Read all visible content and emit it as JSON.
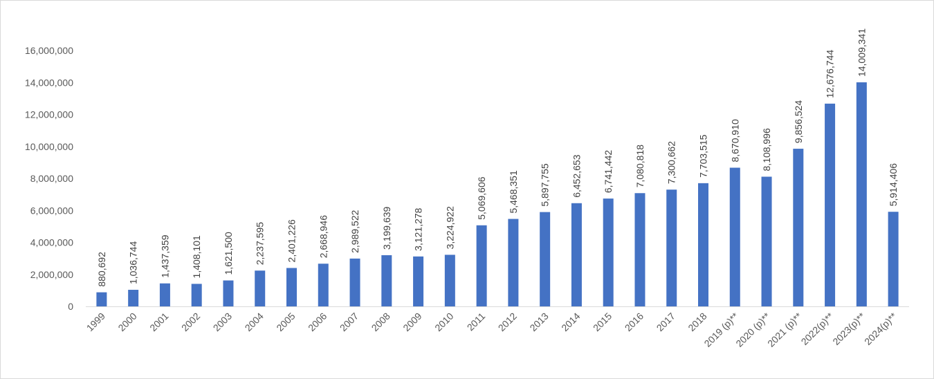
{
  "chart_data": {
    "type": "bar",
    "title": "",
    "xlabel": "",
    "ylabel": "",
    "ylim": [
      0,
      16000000
    ],
    "yticks": [
      0,
      2000000,
      4000000,
      6000000,
      8000000,
      10000000,
      12000000,
      14000000,
      16000000
    ],
    "ytick_labels": [
      "0",
      "2,000,000",
      "4,000,000",
      "6,000,000",
      "8,000,000",
      "10,000,000",
      "12,000,000",
      "14,000,000",
      "16,000,000"
    ],
    "grid": false,
    "legend": "none",
    "bar_color": "#4472C4",
    "categories": [
      "1999",
      "2000",
      "2001",
      "2002",
      "2003",
      "2004",
      "2005",
      "2006",
      "2007",
      "2008",
      "2009",
      "2010",
      "2011",
      "2012",
      "2013",
      "2014",
      "2015",
      "2016",
      "2017",
      "2018",
      "2019 (p)**",
      "2020 (p)**",
      "2021 (p)**",
      "2022(p)**",
      "2023(p)**",
      "2024(p)**"
    ],
    "values": [
      880692,
      1036744,
      1437359,
      1408101,
      1621500,
      2237595,
      2401226,
      2668946,
      2989522,
      3199639,
      3121278,
      3224922,
      5069606,
      5468351,
      5897755,
      6452653,
      6741442,
      7080818,
      7300662,
      7703515,
      8670910,
      8108996,
      9856524,
      12676744,
      14009341,
      5914406
    ],
    "value_labels": [
      "880,692",
      "1,036,744",
      "1,437,359",
      "1,408,101",
      "1,621,500",
      "2,237,595",
      "2,401,226",
      "2,668,946",
      "2,989,522",
      "3,199,639",
      "3,121,278",
      "3,224,922",
      "5,069,606",
      "5,468,351",
      "5,897,755",
      "6,452,653",
      "6,741,442",
      "7,080,818",
      "7,300,662",
      "7,703,515",
      "8,670,910",
      "8,108,996",
      "9,856,524",
      "12,676,744",
      "14,009,341",
      "5,914,406"
    ]
  }
}
